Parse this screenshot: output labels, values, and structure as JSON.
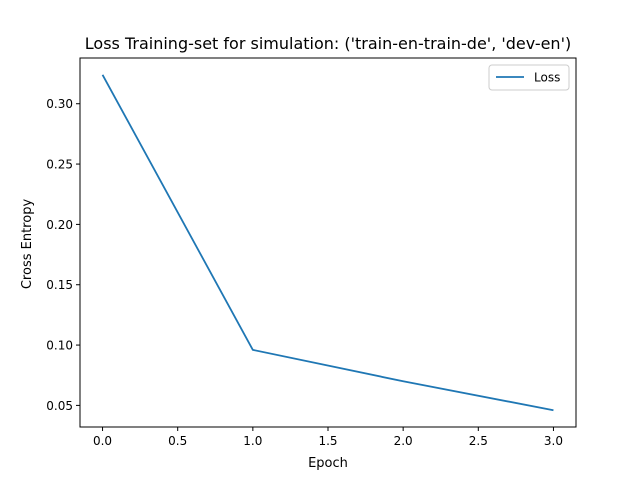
{
  "chart_data": {
    "type": "line",
    "title": "Loss Training-set for simulation: ('train-en-train-de', 'dev-en')",
    "xlabel": "Epoch",
    "ylabel": "Cross Entropy",
    "x": [
      0,
      1,
      2,
      3
    ],
    "series": [
      {
        "name": "Loss",
        "values": [
          0.324,
          0.096,
          0.07,
          0.046
        ],
        "color": "#1f77b4"
      }
    ],
    "xlim": [
      -0.15,
      3.15
    ],
    "ylim": [
      0.0321,
      0.3379
    ],
    "xticks": [
      0.0,
      0.5,
      1.0,
      1.5,
      2.0,
      2.5,
      3.0
    ],
    "xtick_labels": [
      "0.0",
      "0.5",
      "1.0",
      "1.5",
      "2.0",
      "2.5",
      "3.0"
    ],
    "yticks": [
      0.05,
      0.1,
      0.15,
      0.2,
      0.25,
      0.3
    ],
    "ytick_labels": [
      "0.05",
      "0.10",
      "0.15",
      "0.20",
      "0.25",
      "0.30"
    ],
    "grid": false,
    "legend_position": "top-right"
  }
}
